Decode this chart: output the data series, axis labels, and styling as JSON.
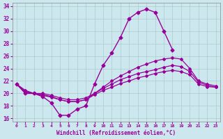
{
  "xlabel": "Windchill (Refroidissement éolien,°C)",
  "bg_color": "#cce8ee",
  "line_color": "#990099",
  "grid_color": "#aacccc",
  "xlim": [
    -0.5,
    23.5
  ],
  "ylim": [
    15.5,
    34.5
  ],
  "xticks": [
    0,
    1,
    2,
    3,
    4,
    5,
    6,
    7,
    8,
    9,
    10,
    11,
    12,
    13,
    14,
    15,
    16,
    17,
    18,
    19,
    20,
    21,
    22,
    23
  ],
  "yticks": [
    16,
    18,
    20,
    22,
    24,
    26,
    28,
    30,
    32,
    34
  ],
  "series": [
    {
      "name": "main_curve",
      "x": [
        0,
        1,
        2,
        3,
        4,
        5,
        6,
        7,
        8,
        9,
        10,
        11,
        12,
        13,
        14,
        15,
        16,
        17,
        18
      ],
      "y": [
        21.5,
        20.0,
        20.0,
        19.5,
        18.5,
        16.5,
        16.5,
        17.5,
        18.0,
        21.5,
        24.5,
        26.5,
        29.0,
        32.0,
        33.0,
        33.5,
        33.0,
        30.0,
        27.0
      ],
      "marker": "D",
      "lw": 1.0,
      "ms": 2.5
    },
    {
      "name": "line_upper",
      "x": [
        0,
        1,
        2,
        3,
        4,
        5,
        6,
        7,
        8,
        9,
        10,
        11,
        12,
        13,
        14,
        15,
        16,
        17,
        18,
        19,
        20,
        21,
        22,
        23
      ],
      "y": [
        21.5,
        20.5,
        20.0,
        20.0,
        19.7,
        19.3,
        19.0,
        19.0,
        19.3,
        20.0,
        21.0,
        22.0,
        22.8,
        23.5,
        24.2,
        24.7,
        25.2,
        25.5,
        25.7,
        25.5,
        24.0,
        22.0,
        21.5,
        21.2
      ],
      "marker": "D",
      "lw": 0.9,
      "ms": 2.0
    },
    {
      "name": "line_mid",
      "x": [
        0,
        1,
        2,
        3,
        4,
        5,
        6,
        7,
        8,
        9,
        10,
        11,
        12,
        13,
        14,
        15,
        16,
        17,
        18,
        19,
        20,
        21,
        22,
        23
      ],
      "y": [
        21.5,
        20.3,
        20.0,
        19.8,
        19.5,
        19.0,
        18.7,
        18.7,
        19.0,
        20.0,
        20.8,
        21.5,
        22.2,
        22.7,
        23.2,
        23.5,
        23.8,
        24.2,
        24.5,
        24.3,
        23.5,
        21.8,
        21.3,
        21.0
      ],
      "marker": "D",
      "lw": 0.9,
      "ms": 2.0
    },
    {
      "name": "line_lower",
      "x": [
        0,
        1,
        2,
        3,
        4,
        5,
        6,
        7,
        8,
        9,
        10,
        11,
        12,
        13,
        14,
        15,
        16,
        17,
        18,
        19,
        20,
        21,
        22,
        23
      ],
      "y": [
        21.5,
        20.2,
        20.0,
        19.7,
        19.4,
        19.0,
        18.7,
        18.7,
        19.0,
        19.8,
        20.5,
        21.0,
        21.6,
        22.0,
        22.5,
        22.8,
        23.2,
        23.5,
        23.7,
        23.5,
        23.0,
        21.5,
        21.1,
        21.0
      ],
      "marker": "D",
      "lw": 0.9,
      "ms": 2.0
    }
  ]
}
